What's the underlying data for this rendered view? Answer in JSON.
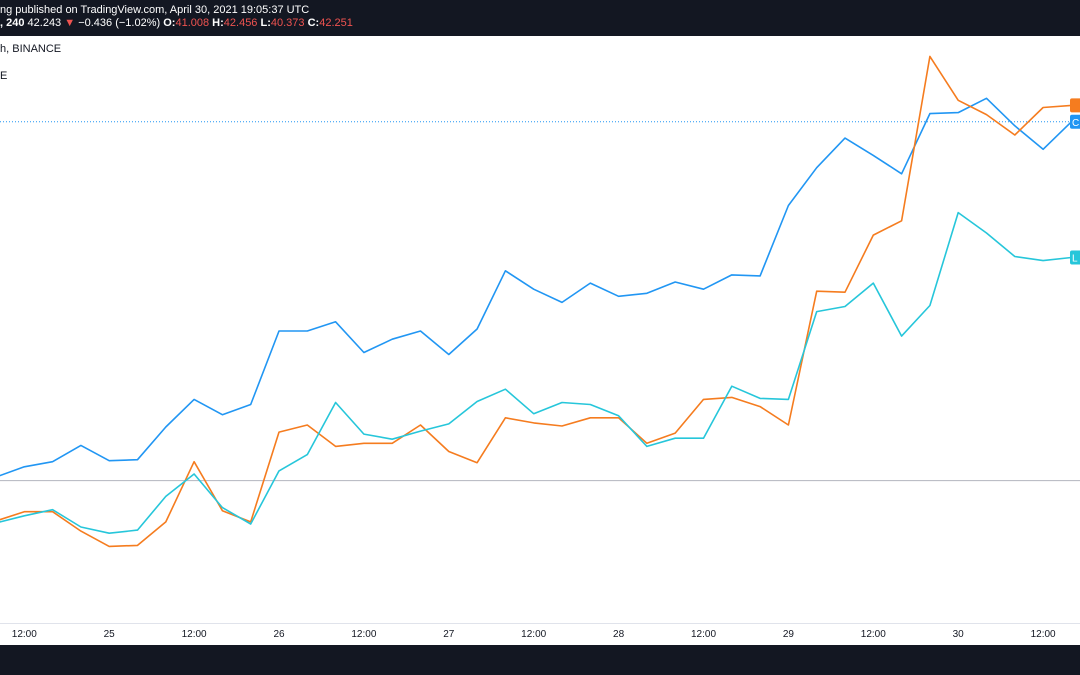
{
  "header": {
    "publish_text": "ng published on TradingView.com, April 30, 2021 19:05:37 UTC",
    "interval": ", 240",
    "last_price": "42.243",
    "change_arrow": "▼",
    "change": "−0.436 (−1.02%)",
    "o_label": "O:",
    "o_value": "41.008",
    "h_label": "H:",
    "h_value": "42.456",
    "l_label": "L:",
    "l_value": "40.373",
    "c_label": "C:",
    "c_value": "42.251",
    "symbol_line": "h, BINANCE",
    "indicator_line": "E"
  },
  "colors": {
    "background": "#ffffff",
    "panel": "#131722",
    "blue_series": "#2196f3",
    "orange_series": "#f57c1f",
    "teal_series": "#26c6da",
    "down": "#ef5350"
  },
  "chart_data": {
    "type": "line",
    "x_labels": [
      "12:00",
      "25",
      "12:00",
      "26",
      "12:00",
      "27",
      "12:00",
      "28",
      "12:00",
      "29",
      "12:00",
      "30",
      "12:00"
    ],
    "x_label_index": [
      1,
      4,
      7,
      10,
      13,
      16,
      19,
      22,
      25,
      28,
      31,
      34,
      37
    ],
    "ylim": [
      0,
      575
    ],
    "baseline": 139.5,
    "grid": false,
    "series": [
      {
        "key": "blue",
        "color": "#2196f3",
        "tag_label": "C",
        "values": [
          143,
          153,
          158,
          174,
          159,
          160,
          192,
          219,
          204,
          214,
          286,
          286,
          295,
          265,
          278,
          286,
          263,
          288,
          345,
          327,
          314,
          333,
          320,
          323,
          334,
          327,
          341,
          340,
          409,
          446,
          475,
          458,
          440,
          499,
          500,
          514,
          487,
          464,
          491
        ]
      },
      {
        "key": "orange",
        "color": "#f57c1f",
        "tag_label": "",
        "values": [
          100,
          109,
          109,
          90,
          75,
          76,
          99,
          158,
          110,
          99,
          187,
          194,
          173,
          176,
          176,
          194,
          168,
          157,
          201,
          196,
          193,
          201,
          201,
          176,
          186,
          219,
          221,
          212,
          194,
          325,
          324,
          380,
          394,
          555,
          512,
          498,
          478,
          505,
          507
        ]
      },
      {
        "key": "teal",
        "color": "#26c6da",
        "tag_label": "L",
        "values": [
          98,
          105,
          111,
          94,
          88,
          91,
          124,
          146,
          113,
          97,
          149,
          165,
          216,
          185,
          180,
          188,
          195,
          217,
          229,
          205,
          216,
          214,
          203,
          173,
          181,
          181,
          232,
          220,
          219,
          305,
          310,
          333,
          281,
          311,
          402,
          382,
          359,
          355,
          358
        ]
      }
    ]
  }
}
